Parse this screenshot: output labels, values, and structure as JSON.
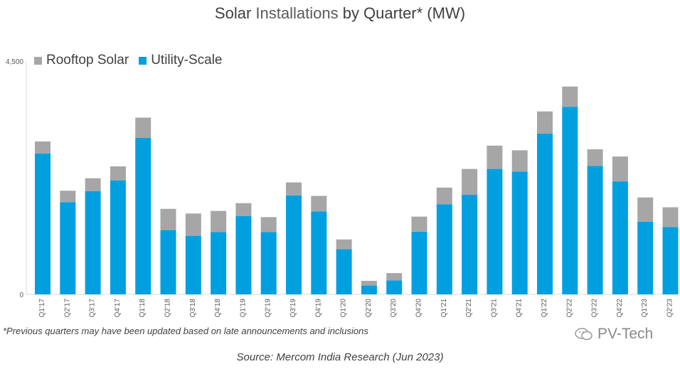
{
  "chart_data": {
    "type": "bar",
    "stacked": true,
    "title": "Solar Installations by Quarter* (MW)",
    "categories": [
      "Q1'17",
      "Q2'17",
      "Q3'17",
      "Q4'17",
      "Q1'18",
      "Q2'18",
      "Q3'18",
      "Q4'18",
      "Q1'19",
      "Q2'19",
      "Q3'19",
      "Q4'19",
      "Q1'20",
      "Q2'20",
      "Q3'20",
      "Q4'20",
      "Q1'21",
      "Q2'21",
      "Q3'21",
      "Q4'21",
      "Q1'22",
      "Q2'22",
      "Q3'22",
      "Q4'22",
      "Q1'23",
      "Q2'23"
    ],
    "series": [
      {
        "name": "Utility-Scale",
        "color": "#00a0e0",
        "values": [
          2720,
          1780,
          1990,
          2200,
          3020,
          1240,
          1130,
          1200,
          1510,
          1200,
          1910,
          1600,
          870,
          170,
          270,
          1210,
          1740,
          1920,
          2420,
          2370,
          3100,
          3620,
          2480,
          2180,
          1400,
          1300
        ]
      },
      {
        "name": "Rooftop Solar",
        "color": "#a6a6a6",
        "values": [
          230,
          220,
          250,
          270,
          390,
          410,
          430,
          410,
          250,
          290,
          250,
          300,
          190,
          90,
          140,
          290,
          320,
          500,
          450,
          410,
          430,
          390,
          320,
          480,
          470,
          380
        ]
      }
    ],
    "y_ticks": [
      "4,500",
      "0"
    ],
    "ylim": [
      0,
      4500
    ],
    "legend": "top-left"
  },
  "title_prefix": "Solar ",
  "title_middle": "Installations",
  "title_suffix": " by Quarter* (MW)",
  "legend_items": [
    "Rooftop Solar",
    "Utility-Scale"
  ],
  "footnote": "*Previous quarters may have been updated based on late announcements and inclusions",
  "source": "Source: Mercom India Research (Jun 2023)",
  "watermark": "PV-Tech"
}
